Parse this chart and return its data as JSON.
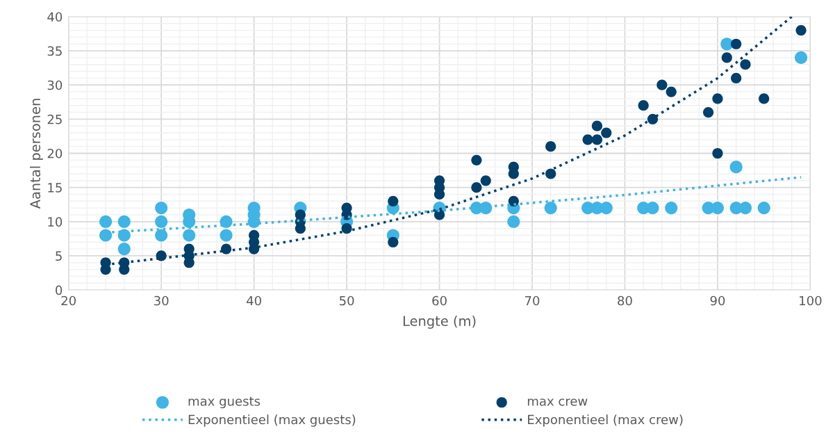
{
  "chart_data": {
    "type": "scatter",
    "xlabel": "Lengte (m)",
    "ylabel": "Aantal personen",
    "xlim": [
      20,
      100
    ],
    "xticks": [
      20,
      30,
      40,
      50,
      60,
      70,
      80,
      90,
      100
    ],
    "ylim": [
      0,
      40
    ],
    "yticks": [
      0,
      5,
      10,
      15,
      20,
      25,
      30,
      35,
      40
    ],
    "grid": true,
    "legend": "bottom",
    "marker": "circle",
    "series": [
      {
        "name": "max guests",
        "color": "#3fb4e5",
        "x": [
          24,
          24,
          26,
          26,
          26,
          30,
          30,
          30,
          33,
          33,
          33,
          37,
          37,
          40,
          40,
          40,
          45,
          50,
          55,
          55,
          60,
          64,
          65,
          68,
          68,
          72,
          76,
          77,
          78,
          82,
          83,
          85,
          89,
          90,
          91,
          92,
          92,
          93,
          95,
          99
        ],
        "values": [
          10,
          8,
          10,
          8,
          6,
          12,
          10,
          8,
          11,
          10,
          8,
          10,
          8,
          12,
          11,
          10,
          12,
          10,
          12,
          8,
          12,
          12,
          12,
          12,
          10,
          12,
          12,
          12,
          12,
          12,
          12,
          12,
          12,
          12,
          36,
          12,
          18,
          12,
          12,
          34
        ]
      },
      {
        "name": "max crew",
        "color": "#023f6a",
        "x": [
          24,
          24,
          26,
          26,
          30,
          33,
          33,
          33,
          37,
          40,
          40,
          40,
          45,
          45,
          45,
          50,
          50,
          50,
          55,
          55,
          60,
          60,
          60,
          60,
          64,
          64,
          65,
          68,
          68,
          68,
          72,
          72,
          76,
          77,
          77,
          78,
          82,
          83,
          84,
          85,
          89,
          90,
          90,
          91,
          92,
          92,
          93,
          95,
          99
        ],
        "values": [
          4,
          3,
          4,
          3,
          5,
          6,
          5,
          4,
          6,
          8,
          7,
          6,
          11,
          10,
          9,
          12,
          11,
          9,
          13,
          7,
          16,
          15,
          14,
          11,
          19,
          15,
          16,
          18,
          17,
          13,
          21,
          17,
          22,
          24,
          22,
          23,
          27,
          25,
          30,
          29,
          26,
          28,
          20,
          34,
          36,
          31,
          33,
          28,
          38
        ]
      },
      {
        "name": "Exponentieel (max guests)",
        "type": "line",
        "line_style": "dotted",
        "marker": "none",
        "color": "#3fb4e5",
        "x": [
          24,
          40,
          60,
          80,
          99
        ],
        "values": [
          8.4,
          9.7,
          11.6,
          13.9,
          16.5
        ]
      },
      {
        "name": "Exponentieel (max crew)",
        "type": "line",
        "line_style": "dotted",
        "marker": "none",
        "color": "#023f6a",
        "x": [
          24,
          40,
          50,
          60,
          70,
          80,
          90,
          98
        ],
        "values": [
          3.7,
          6.2,
          8.6,
          11.8,
          16.3,
          22.6,
          31,
          40
        ]
      }
    ]
  }
}
